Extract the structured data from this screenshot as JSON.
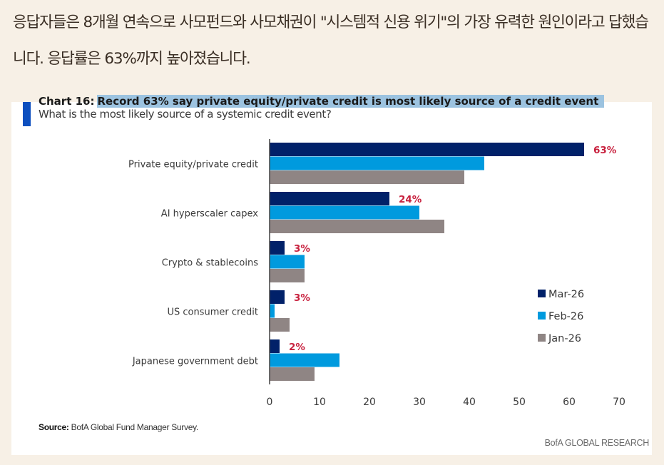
{
  "article": {
    "caption": "응답자들은 8개월 연속으로 사모펀드와 사모채권이 \"시스템적 신용 위기\"의 가장 유력한 원인이라고 답했습니다. 응답률은 63%까지 높아졌습니다."
  },
  "colors": {
    "Mar-26": "#012169",
    "Feb-26": "#009ade",
    "Jan-26": "#8f8584",
    "data_label": "#c8213e",
    "accent": "#0d4fbf",
    "title_highlight": "#9cc3e0"
  },
  "chart_data": {
    "type": "bar",
    "orientation": "horizontal",
    "title_prefix": "Chart 16:",
    "title": "Record 63% say private equity/private credit is most likely source of a credit event",
    "subtitle": "What is the most likely source of a systemic credit event?",
    "categories": [
      "Private equity/private credit",
      "AI hyperscaler capex",
      "Crypto & stablecoins",
      "US consumer credit",
      "Japanese government debt"
    ],
    "series": [
      {
        "name": "Mar-26",
        "values": [
          63,
          24,
          3,
          3,
          2
        ]
      },
      {
        "name": "Feb-26",
        "values": [
          43,
          30,
          7,
          1,
          14
        ]
      },
      {
        "name": "Jan-26",
        "values": [
          39,
          35,
          7,
          4,
          9
        ]
      }
    ],
    "data_labels": {
      "series": "Mar-26",
      "labels": [
        "63%",
        "24%",
        "3%",
        "3%",
        "2%"
      ]
    },
    "xlim": [
      0,
      70
    ],
    "xticks": [
      0,
      10,
      20,
      30,
      40,
      50,
      60,
      70
    ],
    "xlabel": "",
    "ylabel": "",
    "grid": false,
    "legend": {
      "position": "right",
      "entries": [
        "Mar-26",
        "Feb-26",
        "Jan-26"
      ]
    },
    "source_label": "Source:",
    "source_text": "BofA Global Fund Manager Survey.",
    "brand": "BofA GLOBAL RESEARCH"
  }
}
